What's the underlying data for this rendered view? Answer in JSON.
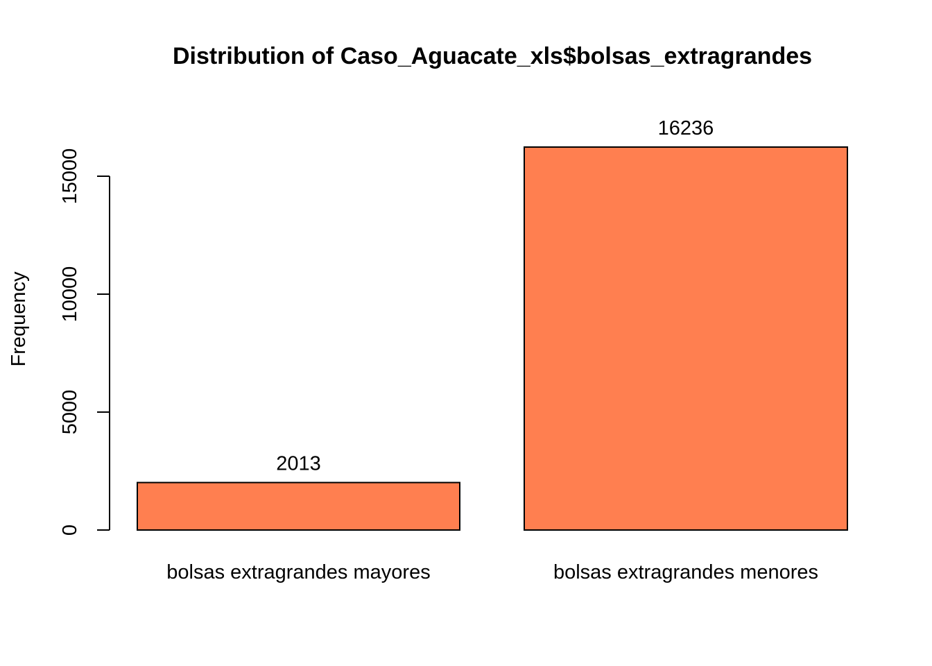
{
  "chart_data": {
    "type": "bar",
    "title": "Distribution of Caso_Aguacate_xls$bolsas_extragrandes",
    "xlabel": "",
    "ylabel": "Frequency",
    "categories": [
      "bolsas extragrandes mayores",
      "bolsas extragrandes menores"
    ],
    "values": [
      2013,
      16236
    ],
    "data_labels": [
      "2013",
      "16236"
    ],
    "ylim": [
      0,
      16236
    ],
    "yticks": [
      0,
      5000,
      10000,
      15000
    ],
    "ytick_labels": [
      "0",
      "5000",
      "10000",
      "15000"
    ],
    "bar_color": "#FF7F50",
    "grid": false,
    "legend": "none"
  }
}
